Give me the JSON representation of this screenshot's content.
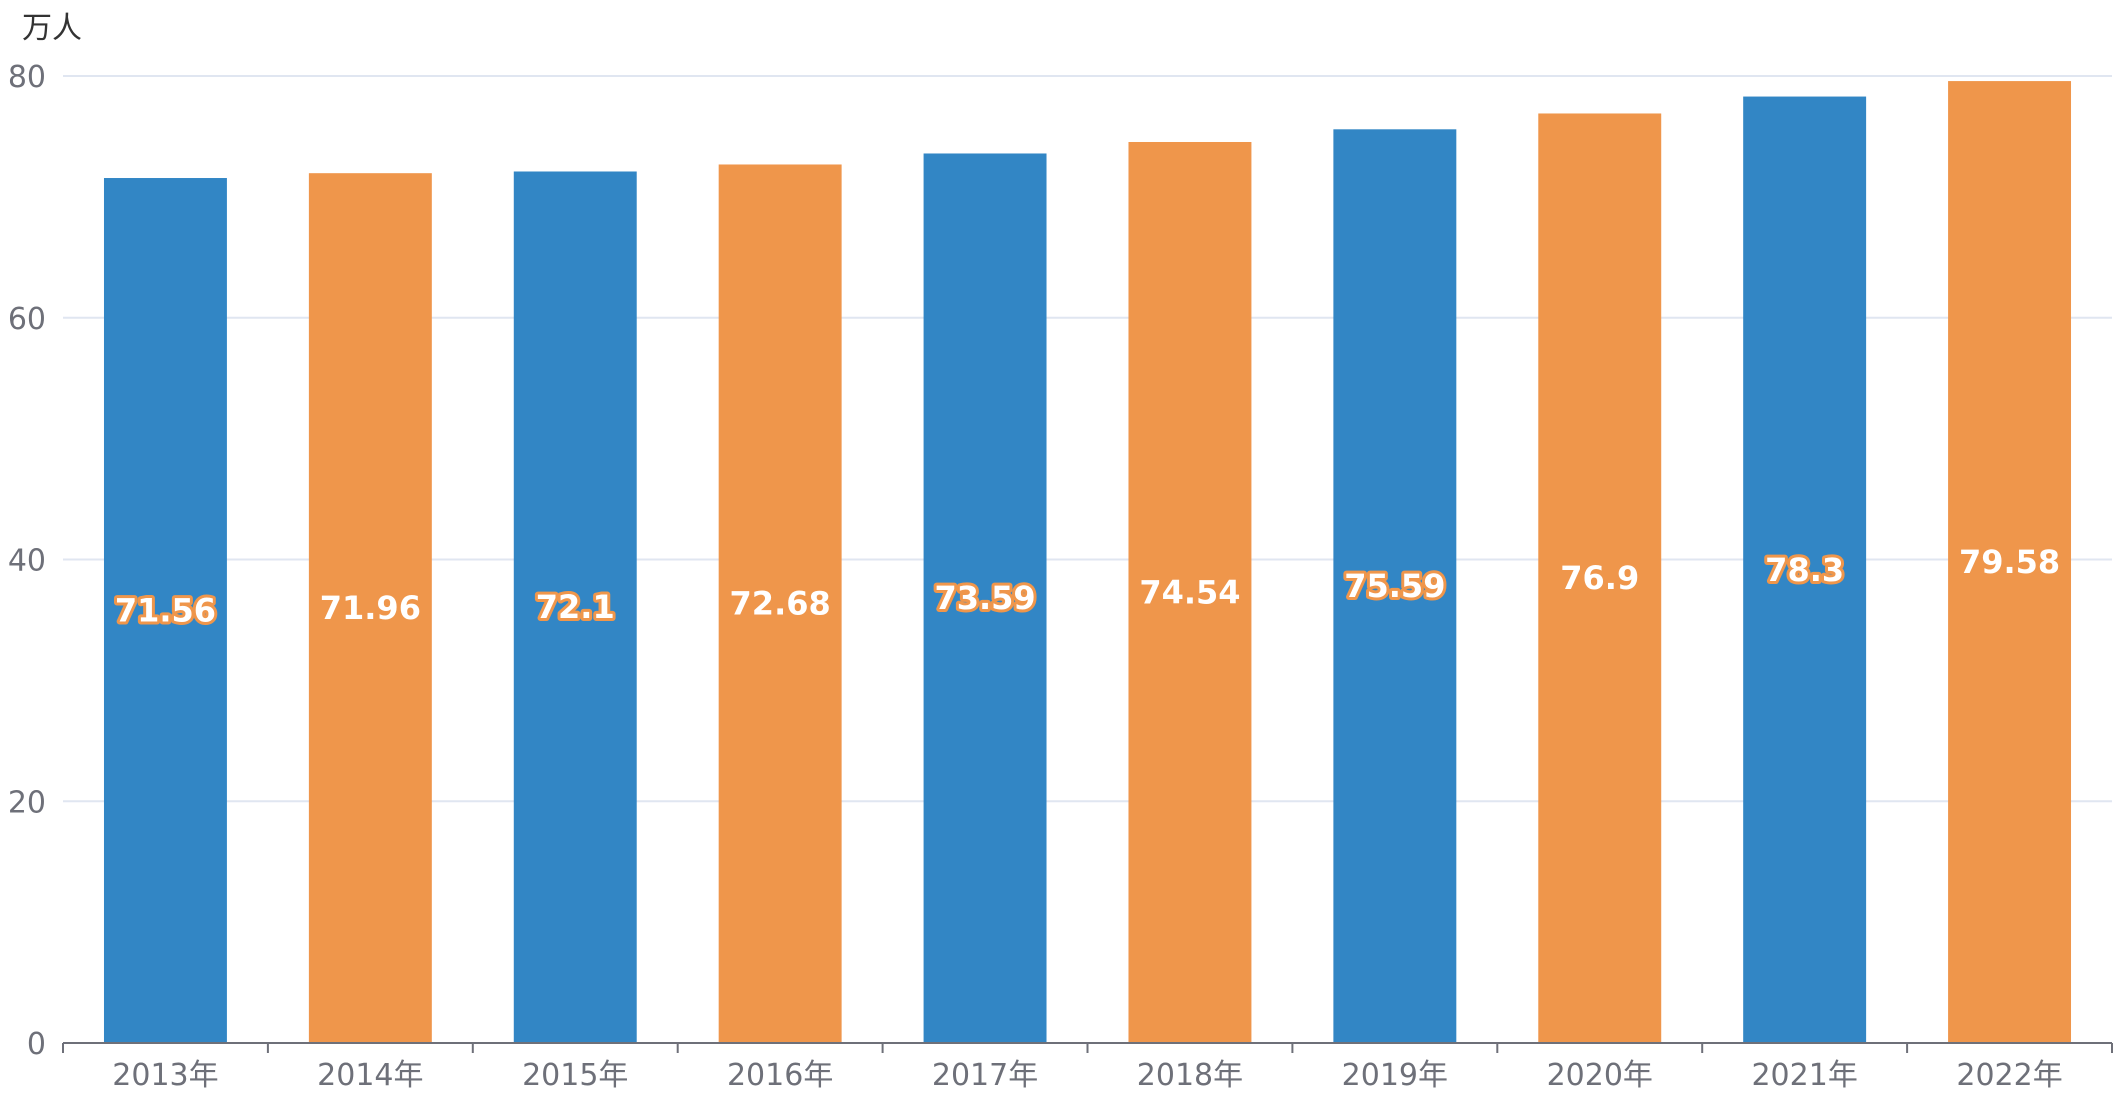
{
  "chart_data": {
    "type": "bar",
    "unit_label": "万人",
    "categories": [
      "2013年",
      "2014年",
      "2015年",
      "2016年",
      "2017年",
      "2018年",
      "2019年",
      "2020年",
      "2021年",
      "2022年"
    ],
    "values": [
      71.56,
      71.96,
      72.1,
      72.68,
      73.59,
      74.54,
      75.59,
      76.9,
      78.3,
      79.58
    ],
    "value_labels": [
      "71.56",
      "71.96",
      "72.1",
      "72.68",
      "73.59",
      "74.54",
      "75.59",
      "76.9",
      "78.3",
      "79.58"
    ],
    "ylim": [
      0,
      80
    ],
    "yticks": [
      0,
      20,
      40,
      60,
      80
    ],
    "grid": true,
    "colors": [
      "#3286c5",
      "#ef964b"
    ],
    "gridline_color": "#e0e6f1",
    "axis_color": "#6e7079"
  }
}
